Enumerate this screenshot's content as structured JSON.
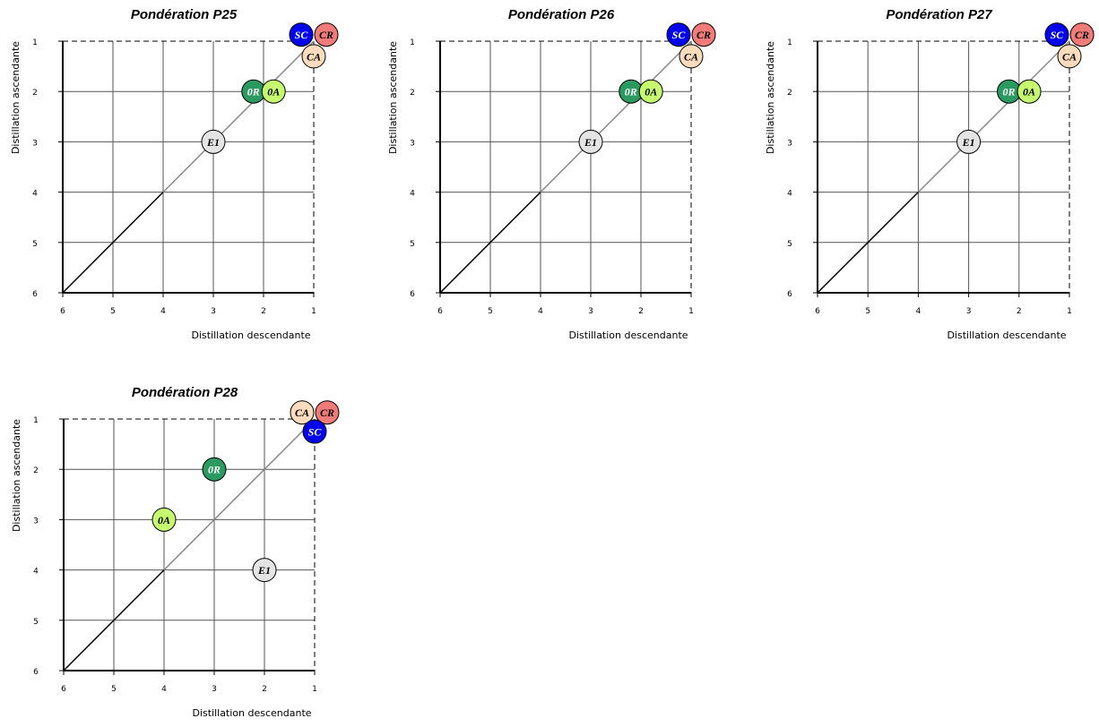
{
  "chart_data": [
    {
      "type": "scatter",
      "title": "Pondération P25",
      "xlabel": "Distillation descendante",
      "ylabel": "Distillation ascendante",
      "x_ticks": [
        "6",
        "5",
        "4",
        "3",
        "2",
        "1"
      ],
      "y_ticks": [
        "1",
        "2",
        "3",
        "4",
        "5",
        "6"
      ],
      "xlim": [
        6,
        1
      ],
      "ylim": [
        1,
        6
      ],
      "points": [
        {
          "label": "SC",
          "x": 1.25,
          "y": 0.87
        },
        {
          "label": "CR",
          "x": 0.75,
          "y": 0.87
        },
        {
          "label": "CA",
          "x": 1.0,
          "y": 1.3
        },
        {
          "label": "0R",
          "x": 2.2,
          "y": 2.0
        },
        {
          "label": "0A",
          "x": 1.8,
          "y": 2.0
        },
        {
          "label": "E1",
          "x": 3.0,
          "y": 3.0
        }
      ]
    },
    {
      "type": "scatter",
      "title": "Pondération P26",
      "xlabel": "Distillation descendante",
      "ylabel": "Distillation ascendante",
      "x_ticks": [
        "6",
        "5",
        "4",
        "3",
        "2",
        "1"
      ],
      "y_ticks": [
        "1",
        "2",
        "3",
        "4",
        "5",
        "6"
      ],
      "xlim": [
        6,
        1
      ],
      "ylim": [
        1,
        6
      ],
      "points": [
        {
          "label": "SC",
          "x": 1.25,
          "y": 0.87
        },
        {
          "label": "CR",
          "x": 0.75,
          "y": 0.87
        },
        {
          "label": "CA",
          "x": 1.0,
          "y": 1.3
        },
        {
          "label": "0R",
          "x": 2.2,
          "y": 2.0
        },
        {
          "label": "0A",
          "x": 1.8,
          "y": 2.0
        },
        {
          "label": "E1",
          "x": 3.0,
          "y": 3.0
        }
      ]
    },
    {
      "type": "scatter",
      "title": "Pondération P27",
      "xlabel": "Distillation descendante",
      "ylabel": "Distillation ascendante",
      "x_ticks": [
        "6",
        "5",
        "4",
        "3",
        "2",
        "1"
      ],
      "y_ticks": [
        "1",
        "2",
        "3",
        "4",
        "5",
        "6"
      ],
      "xlim": [
        6,
        1
      ],
      "ylim": [
        1,
        6
      ],
      "points": [
        {
          "label": "SC",
          "x": 1.25,
          "y": 0.87
        },
        {
          "label": "CR",
          "x": 0.75,
          "y": 0.87
        },
        {
          "label": "CA",
          "x": 1.0,
          "y": 1.3
        },
        {
          "label": "0R",
          "x": 2.2,
          "y": 2.0
        },
        {
          "label": "0A",
          "x": 1.8,
          "y": 2.0
        },
        {
          "label": "E1",
          "x": 3.0,
          "y": 3.0
        }
      ]
    },
    {
      "type": "scatter",
      "title": "Pondération P28",
      "xlabel": "Distillation descendante",
      "ylabel": "Distillation ascendante",
      "x_ticks": [
        "6",
        "5",
        "4",
        "3",
        "2",
        "1"
      ],
      "y_ticks": [
        "1",
        "2",
        "3",
        "4",
        "5",
        "6"
      ],
      "xlim": [
        6,
        1
      ],
      "ylim": [
        1,
        6
      ],
      "points": [
        {
          "label": "CA",
          "x": 1.25,
          "y": 0.87
        },
        {
          "label": "CR",
          "x": 0.75,
          "y": 0.87
        },
        {
          "label": "SC",
          "x": 1.0,
          "y": 1.25
        },
        {
          "label": "0R",
          "x": 3.0,
          "y": 2.0
        },
        {
          "label": "0A",
          "x": 4.0,
          "y": 3.0
        },
        {
          "label": "E1",
          "x": 2.0,
          "y": 4.0
        }
      ]
    }
  ],
  "marker_styles": {
    "SC": {
      "fill": "#0000ee",
      "text": "#ffffff"
    },
    "CR": {
      "fill": "#f07b78",
      "text": "#000000"
    },
    "CA": {
      "fill": "#fcdcbc",
      "text": "#000000"
    },
    "0R": {
      "fill": "#2a9a60",
      "text": "#ffffff"
    },
    "0A": {
      "fill": "#c6f870",
      "text": "#000000"
    },
    "E1": {
      "fill": "#e4e4e4",
      "text": "#000000"
    }
  }
}
